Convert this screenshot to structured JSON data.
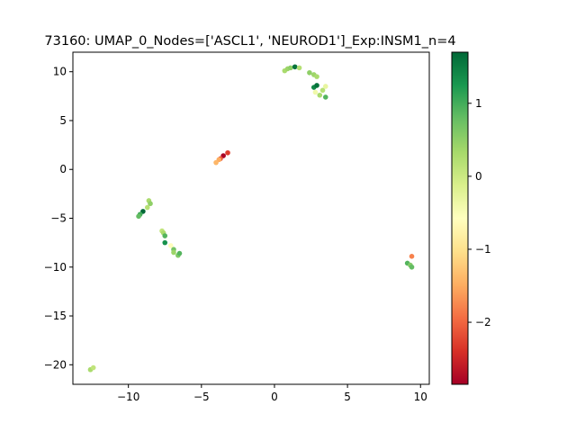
{
  "chart_data": {
    "type": "scatter",
    "title": "73160: UMAP_0_Nodes=['ASCL1', 'NEUROD1']_Exp:INSM1_n=4",
    "xlabel": "",
    "ylabel": "",
    "xlim": [
      -13.8,
      10.6
    ],
    "ylim": [
      -22.0,
      12.0
    ],
    "xticks": [
      -10,
      -5,
      0,
      5,
      10
    ],
    "yticks": [
      -20,
      -15,
      -10,
      -5,
      0,
      5,
      10
    ],
    "grid": false,
    "colormap": "RdYlGn",
    "colorbar": {
      "range": [
        -2.85,
        1.7
      ],
      "ticks": [
        -2,
        -1,
        0,
        1
      ],
      "stops": [
        "#a50026",
        "#d73027",
        "#f46d43",
        "#fdae61",
        "#fee08b",
        "#ffffbf",
        "#d9ef8b",
        "#a6d96a",
        "#66bd63",
        "#1a9850",
        "#006837"
      ]
    },
    "points": [
      {
        "x": 0.7,
        "y": 10.1,
        "c": 0.3
      },
      {
        "x": 0.9,
        "y": 10.3,
        "c": 0.4
      },
      {
        "x": 1.1,
        "y": 10.4,
        "c": 0.5
      },
      {
        "x": 1.4,
        "y": 10.5,
        "c": 1.6
      },
      {
        "x": 1.7,
        "y": 10.4,
        "c": 0.2
      },
      {
        "x": 2.4,
        "y": 9.9,
        "c": 0.5
      },
      {
        "x": 2.7,
        "y": 9.7,
        "c": 0.4
      },
      {
        "x": 2.9,
        "y": 9.5,
        "c": 0.3
      },
      {
        "x": 2.7,
        "y": 8.4,
        "c": 1.4
      },
      {
        "x": 2.9,
        "y": 8.6,
        "c": 1.6
      },
      {
        "x": 2.8,
        "y": 7.9,
        "c": -0.4
      },
      {
        "x": 3.1,
        "y": 7.6,
        "c": 0.3
      },
      {
        "x": 3.3,
        "y": 8.1,
        "c": 0.2
      },
      {
        "x": 3.5,
        "y": 8.5,
        "c": -0.3
      },
      {
        "x": 3.5,
        "y": 7.4,
        "c": 0.9
      },
      {
        "x": -3.2,
        "y": 1.7,
        "c": -2.3
      },
      {
        "x": -3.5,
        "y": 1.4,
        "c": -2.8
      },
      {
        "x": -3.7,
        "y": 1.1,
        "c": -2.1
      },
      {
        "x": -3.8,
        "y": 1.0,
        "c": -1.5
      },
      {
        "x": -4.0,
        "y": 0.7,
        "c": -1.4
      },
      {
        "x": -8.6,
        "y": -3.2,
        "c": 0.3
      },
      {
        "x": -8.5,
        "y": -3.5,
        "c": 0.5
      },
      {
        "x": -8.7,
        "y": -3.9,
        "c": 0.2
      },
      {
        "x": -9.0,
        "y": -4.3,
        "c": 1.7
      },
      {
        "x": -9.2,
        "y": -4.6,
        "c": 1.0
      },
      {
        "x": -9.3,
        "y": -4.8,
        "c": 0.8
      },
      {
        "x": -7.7,
        "y": -6.3,
        "c": 0.1
      },
      {
        "x": -7.6,
        "y": -6.5,
        "c": 0.3
      },
      {
        "x": -7.5,
        "y": -6.8,
        "c": 0.9
      },
      {
        "x": -7.5,
        "y": -7.5,
        "c": 1.3
      },
      {
        "x": -7.1,
        "y": -7.8,
        "c": -0.6
      },
      {
        "x": -6.9,
        "y": -8.2,
        "c": 0.7
      },
      {
        "x": -6.9,
        "y": -8.5,
        "c": 0.4
      },
      {
        "x": -6.6,
        "y": -8.8,
        "c": 0.6
      },
      {
        "x": -6.5,
        "y": -8.6,
        "c": 0.9
      },
      {
        "x": 9.4,
        "y": -8.9,
        "c": -1.8
      },
      {
        "x": 9.1,
        "y": -9.6,
        "c": 0.9
      },
      {
        "x": 9.3,
        "y": -9.8,
        "c": 0.6
      },
      {
        "x": 9.4,
        "y": -10.0,
        "c": 0.8
      },
      {
        "x": -12.6,
        "y": -20.5,
        "c": 0.3
      },
      {
        "x": -12.4,
        "y": -20.3,
        "c": 0.1
      }
    ]
  }
}
